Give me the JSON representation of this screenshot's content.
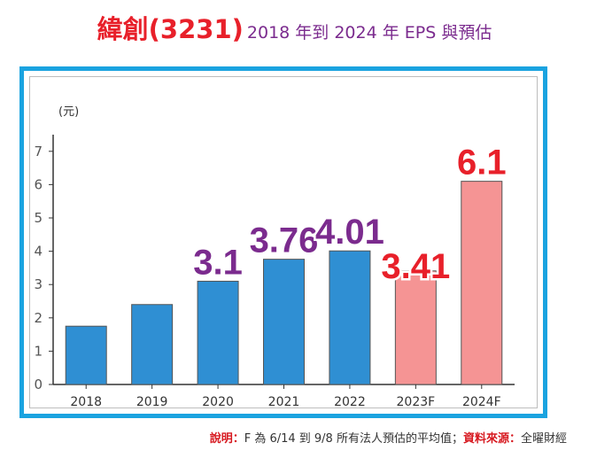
{
  "title": {
    "main": "緯創(3231)",
    "sub": "2018 年到 2024 年 EPS 與預估"
  },
  "footer": {
    "note_label": "說明：",
    "note_text": "F 為 6/14 到 9/8 所有法人預估的平均值；",
    "source_label": "資料來源：",
    "source_text": "全曜財經"
  },
  "chart_data": {
    "type": "bar",
    "title": "",
    "ylabel": "(元)",
    "xlabel": "",
    "ylim": [
      0,
      7.5
    ],
    "yticks": [
      0,
      1,
      2,
      3,
      4,
      5,
      6,
      7
    ],
    "categories": [
      "2018",
      "2019",
      "2020",
      "2021",
      "2022",
      "2023F",
      "2024F"
    ],
    "values": [
      1.75,
      2.4,
      3.1,
      3.76,
      4.01,
      3.41,
      6.1
    ],
    "bar_colors": [
      "#2f8fd3",
      "#2f8fd3",
      "#2f8fd3",
      "#2f8fd3",
      "#2f8fd3",
      "#f59494",
      "#f59494"
    ],
    "data_labels": [
      {
        "category": "2020",
        "text": "3.1",
        "color": "#7b2b8e"
      },
      {
        "category": "2021",
        "text": "3.76",
        "color": "#7b2b8e"
      },
      {
        "category": "2022",
        "text": "4.01",
        "color": "#7b2b8e"
      },
      {
        "category": "2023F",
        "text": "3.41",
        "color": "#e8202a"
      },
      {
        "category": "2024F",
        "text": "6.1",
        "color": "#e8202a"
      }
    ],
    "grid": false,
    "legend": "none"
  }
}
